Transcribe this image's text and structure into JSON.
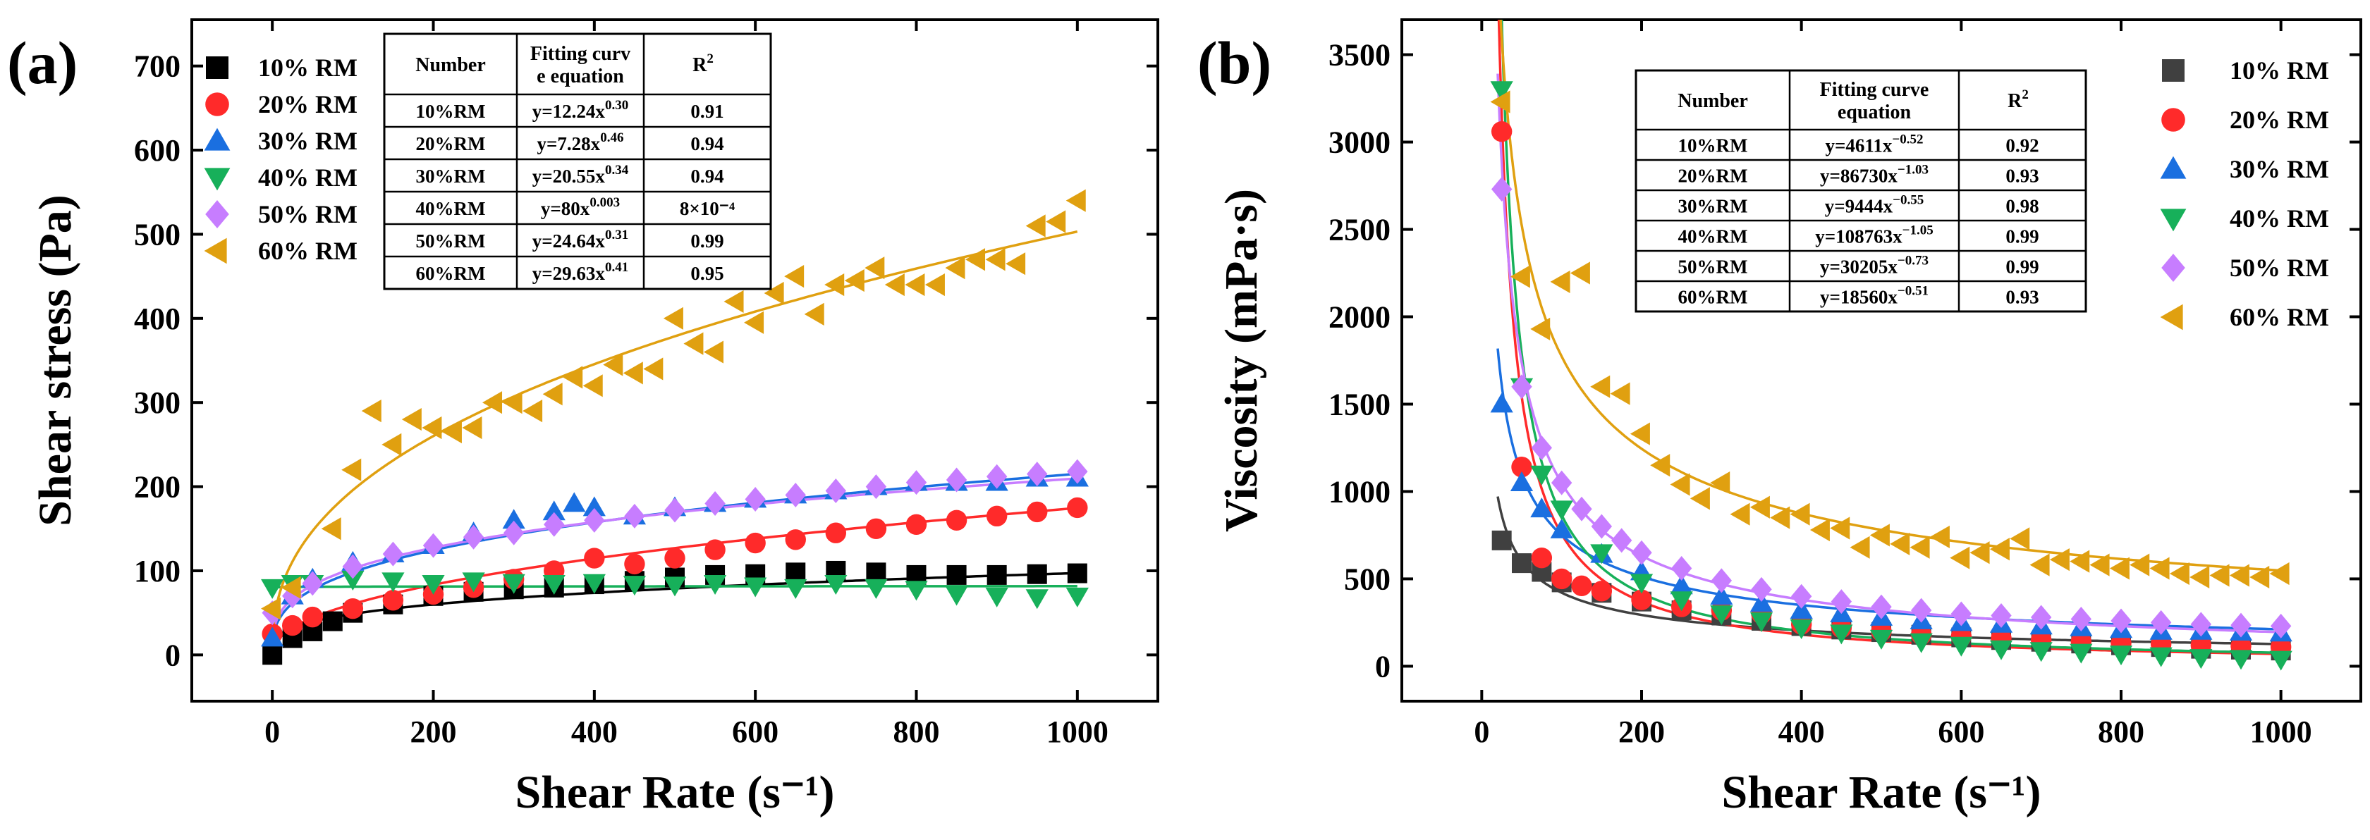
{
  "chart_data": [
    {
      "type": "scatter",
      "panel_label": "(a)",
      "title": "",
      "xlabel": "Shear Rate (s⁻¹)",
      "ylabel": "Shear stress (Pa)",
      "xlim": [
        -100,
        1100
      ],
      "ylim": [
        -55,
        755
      ],
      "xticks": [
        0,
        200,
        400,
        600,
        800,
        1000
      ],
      "xtick_labels": [
        "0",
        "200",
        "400",
        "600",
        "800",
        "1000"
      ],
      "yticks": [
        0,
        100,
        200,
        300,
        400,
        500,
        600,
        700
      ],
      "ytick_labels": [
        "0",
        "100",
        "200",
        "300",
        "400",
        "500",
        "600",
        "700"
      ],
      "legend_position": "top-left",
      "series": [
        {
          "name": "10% RM",
          "marker": "square",
          "color": "#000000",
          "x": [
            0,
            25,
            50,
            75,
            100,
            150,
            200,
            250,
            300,
            350,
            400,
            450,
            500,
            550,
            600,
            650,
            700,
            750,
            800,
            850,
            900,
            950,
            1000
          ],
          "y": [
            0,
            20,
            28,
            40,
            50,
            60,
            70,
            75,
            78,
            80,
            84,
            88,
            92,
            95,
            96,
            98,
            100,
            98,
            95,
            95,
            95,
            96,
            97
          ],
          "fit": {
            "a": 12.24,
            "b": 0.3
          }
        },
        {
          "name": "20% RM",
          "marker": "circle",
          "color": "#ff2a2a",
          "x": [
            0,
            25,
            50,
            100,
            150,
            200,
            250,
            300,
            350,
            400,
            450,
            500,
            550,
            600,
            650,
            700,
            750,
            800,
            850,
            900,
            950,
            1000
          ],
          "y": [
            25,
            35,
            45,
            55,
            65,
            72,
            80,
            90,
            100,
            115,
            108,
            115,
            125,
            133,
            137,
            145,
            150,
            155,
            160,
            165,
            170,
            175
          ],
          "fit": {
            "a": 7.28,
            "b": 0.46
          }
        },
        {
          "name": "30% RM",
          "marker": "triangle-up",
          "color": "#1a6fe0",
          "x": [
            0,
            25,
            50,
            100,
            150,
            200,
            250,
            300,
            350,
            375,
            400,
            450,
            500,
            550,
            600,
            650,
            700,
            750,
            800,
            850,
            900,
            950,
            1000
          ],
          "y": [
            20,
            70,
            90,
            110,
            120,
            130,
            145,
            160,
            170,
            180,
            175,
            165,
            175,
            180,
            185,
            190,
            195,
            200,
            205,
            205,
            205,
            210,
            210
          ],
          "fit": {
            "a": 20.55,
            "b": 0.34
          }
        },
        {
          "name": "40% RM",
          "marker": "triangle-down",
          "color": "#17b05a",
          "x": [
            0,
            25,
            50,
            100,
            150,
            200,
            250,
            300,
            350,
            400,
            450,
            500,
            550,
            600,
            650,
            700,
            750,
            800,
            850,
            900,
            950,
            1000
          ],
          "y": [
            80,
            85,
            85,
            90,
            88,
            85,
            88,
            86,
            85,
            86,
            84,
            83,
            85,
            82,
            80,
            85,
            80,
            78,
            72,
            70,
            68,
            70
          ],
          "fit": {
            "a": 80,
            "b": 0.003
          }
        },
        {
          "name": "50% RM",
          "marker": "diamond",
          "color": "#c77dff",
          "x": [
            0,
            25,
            50,
            100,
            150,
            200,
            250,
            300,
            350,
            400,
            450,
            500,
            550,
            600,
            650,
            700,
            750,
            800,
            850,
            900,
            950,
            1000
          ],
          "y": [
            50,
            70,
            85,
            105,
            120,
            130,
            140,
            145,
            155,
            160,
            165,
            172,
            180,
            185,
            190,
            195,
            200,
            205,
            208,
            212,
            215,
            218
          ],
          "fit": {
            "a": 24.64,
            "b": 0.31
          }
        },
        {
          "name": "60% RM",
          "marker": "triangle-left",
          "color": "#e0a010",
          "x": [
            0,
            25,
            75,
            100,
            125,
            150,
            175,
            200,
            225,
            250,
            275,
            300,
            325,
            350,
            375,
            400,
            425,
            450,
            475,
            500,
            525,
            550,
            575,
            600,
            625,
            650,
            675,
            700,
            725,
            750,
            775,
            800,
            825,
            850,
            875,
            900,
            925,
            950,
            975,
            1000
          ],
          "y": [
            55,
            80,
            150,
            220,
            290,
            250,
            280,
            270,
            265,
            270,
            300,
            300,
            290,
            310,
            330,
            320,
            345,
            335,
            340,
            400,
            370,
            360,
            420,
            395,
            430,
            450,
            405,
            440,
            445,
            460,
            440,
            440,
            440,
            460,
            470,
            470,
            465,
            510,
            515,
            540
          ],
          "fit": {
            "a": 29.63,
            "b": 0.41
          }
        }
      ],
      "table": {
        "headers": [
          "Number",
          "Fitting curve equation",
          "R²"
        ],
        "header_lines": [
          [
            "Number"
          ],
          [
            "Fitting curv",
            "e equation"
          ],
          [
            "R²"
          ]
        ],
        "rows": [
          {
            "number": "10%RM",
            "coef": "y=12.24x",
            "exp": "0.30",
            "r2": "0.91"
          },
          {
            "number": "20%RM",
            "coef": "y=7.28x",
            "exp": "0.46",
            "r2": "0.94"
          },
          {
            "number": "30%RM",
            "coef": "y=20.55x",
            "exp": "0.34",
            "r2": "0.94"
          },
          {
            "number": "40%RM",
            "coef": "y=80x",
            "exp": "0.003",
            "r2": "8×10⁻⁴"
          },
          {
            "number": "50%RM",
            "coef": "y=24.64x",
            "exp": "0.31",
            "r2": "0.99"
          },
          {
            "number": "60%RM",
            "coef": "y=29.63x",
            "exp": "0.41",
            "r2": "0.95"
          }
        ]
      }
    },
    {
      "type": "scatter",
      "panel_label": "(b)",
      "title": "",
      "xlabel": "Shear Rate (s⁻¹)",
      "ylabel": "Viscosity (mPa·s)",
      "xlim": [
        -100,
        1100
      ],
      "ylim": [
        -200,
        3700
      ],
      "xticks": [
        0,
        200,
        400,
        600,
        800,
        1000
      ],
      "xtick_labels": [
        "0",
        "200",
        "400",
        "600",
        "800",
        "1000"
      ],
      "yticks": [
        0,
        500,
        1000,
        1500,
        2000,
        2500,
        3000,
        3500
      ],
      "ytick_labels": [
        "0",
        "500",
        "1000",
        "1500",
        "2000",
        "2500",
        "3000",
        "3500"
      ],
      "legend_position": "top-right",
      "series": [
        {
          "name": "10% RM",
          "marker": "square",
          "color": "#404040",
          "x": [
            25,
            50,
            75,
            100,
            150,
            200,
            250,
            300,
            350,
            400,
            450,
            500,
            550,
            600,
            650,
            700,
            750,
            800,
            850,
            900,
            950,
            1000
          ],
          "y": [
            720,
            590,
            540,
            480,
            420,
            370,
            320,
            290,
            260,
            230,
            210,
            195,
            180,
            165,
            150,
            140,
            130,
            120,
            110,
            100,
            95,
            90
          ],
          "fit": {
            "a": 4611,
            "b": -0.52
          }
        },
        {
          "name": "20% RM",
          "marker": "circle",
          "color": "#ff2a2a",
          "x": [
            25,
            50,
            75,
            100,
            125,
            150,
            200,
            250,
            300,
            350,
            400,
            450,
            500,
            550,
            600,
            650,
            700,
            750,
            800,
            850,
            900,
            950,
            1000
          ],
          "y": [
            3060,
            1140,
            620,
            500,
            460,
            430,
            380,
            340,
            320,
            300,
            240,
            220,
            200,
            180,
            170,
            160,
            150,
            140,
            130,
            125,
            120,
            115,
            110
          ],
          "fit": {
            "a": 86730,
            "b": -1.03
          }
        },
        {
          "name": "30% RM",
          "marker": "triangle-up",
          "color": "#1a6fe0",
          "x": [
            25,
            50,
            75,
            100,
            150,
            200,
            250,
            300,
            350,
            400,
            450,
            500,
            550,
            600,
            650,
            700,
            750,
            800,
            850,
            900,
            950,
            1000
          ],
          "y": [
            1500,
            1050,
            900,
            780,
            640,
            540,
            460,
            400,
            360,
            320,
            300,
            280,
            260,
            250,
            240,
            230,
            220,
            210,
            200,
            200,
            195,
            190
          ],
          "fit": {
            "a": 9444,
            "b": -0.55
          }
        },
        {
          "name": "40% RM",
          "marker": "triangle-down",
          "color": "#17b05a",
          "x": [
            25,
            50,
            75,
            100,
            150,
            200,
            250,
            300,
            350,
            400,
            450,
            500,
            550,
            600,
            650,
            700,
            750,
            800,
            850,
            900,
            950,
            1000
          ],
          "y": [
            3300,
            1600,
            1100,
            900,
            650,
            480,
            380,
            300,
            260,
            220,
            190,
            160,
            140,
            120,
            100,
            90,
            80,
            70,
            60,
            50,
            45,
            40
          ],
          "fit": {
            "a": 108763,
            "b": -1.05
          }
        },
        {
          "name": "50% RM",
          "marker": "diamond",
          "color": "#c77dff",
          "x": [
            25,
            50,
            75,
            100,
            125,
            150,
            175,
            200,
            250,
            300,
            350,
            400,
            450,
            500,
            550,
            600,
            650,
            700,
            750,
            800,
            850,
            900,
            950,
            1000
          ],
          "y": [
            2730,
            1600,
            1250,
            1050,
            900,
            800,
            720,
            650,
            560,
            490,
            440,
            400,
            370,
            340,
            320,
            300,
            290,
            280,
            270,
            260,
            250,
            240,
            235,
            230
          ],
          "fit": {
            "a": 30205,
            "b": -0.73
          }
        },
        {
          "name": "60% RM",
          "marker": "triangle-left",
          "color": "#e0a010",
          "x": [
            25,
            50,
            75,
            100,
            125,
            150,
            175,
            200,
            225,
            250,
            275,
            300,
            325,
            350,
            375,
            400,
            425,
            450,
            475,
            500,
            525,
            550,
            575,
            600,
            625,
            650,
            675,
            700,
            725,
            750,
            775,
            800,
            825,
            850,
            875,
            900,
            925,
            950,
            975,
            1000
          ],
          "y": [
            3230,
            2230,
            1930,
            2200,
            2250,
            1600,
            1560,
            1330,
            1150,
            1040,
            960,
            1050,
            870,
            910,
            850,
            870,
            780,
            790,
            680,
            750,
            700,
            680,
            740,
            620,
            650,
            670,
            730,
            580,
            610,
            600,
            580,
            560,
            580,
            560,
            530,
            510,
            520,
            520,
            510,
            530
          ],
          "fit": {
            "a": 18560,
            "b": -0.51
          }
        }
      ],
      "table": {
        "headers": [
          "Number",
          "Fitting curve equation",
          "R²"
        ],
        "header_lines": [
          [
            "Number"
          ],
          [
            "Fitting curve",
            "equation"
          ],
          [
            "R²"
          ]
        ],
        "rows": [
          {
            "number": "10%RM",
            "coef": "y=4611x",
            "exp": "−0.52",
            "r2": "0.92"
          },
          {
            "number": "20%RM",
            "coef": "y=86730x",
            "exp": "−1.03",
            "r2": "0.93"
          },
          {
            "number": "30%RM",
            "coef": "y=9444x",
            "exp": "−0.55",
            "r2": "0.98"
          },
          {
            "number": "40%RM",
            "coef": "y=108763x",
            "exp": "−1.05",
            "r2": "0.99"
          },
          {
            "number": "50%RM",
            "coef": "y=30205x",
            "exp": "−0.73",
            "r2": "0.99"
          },
          {
            "number": "60%RM",
            "coef": "y=18560x",
            "exp": "−0.51",
            "r2": "0.93"
          }
        ]
      }
    }
  ]
}
